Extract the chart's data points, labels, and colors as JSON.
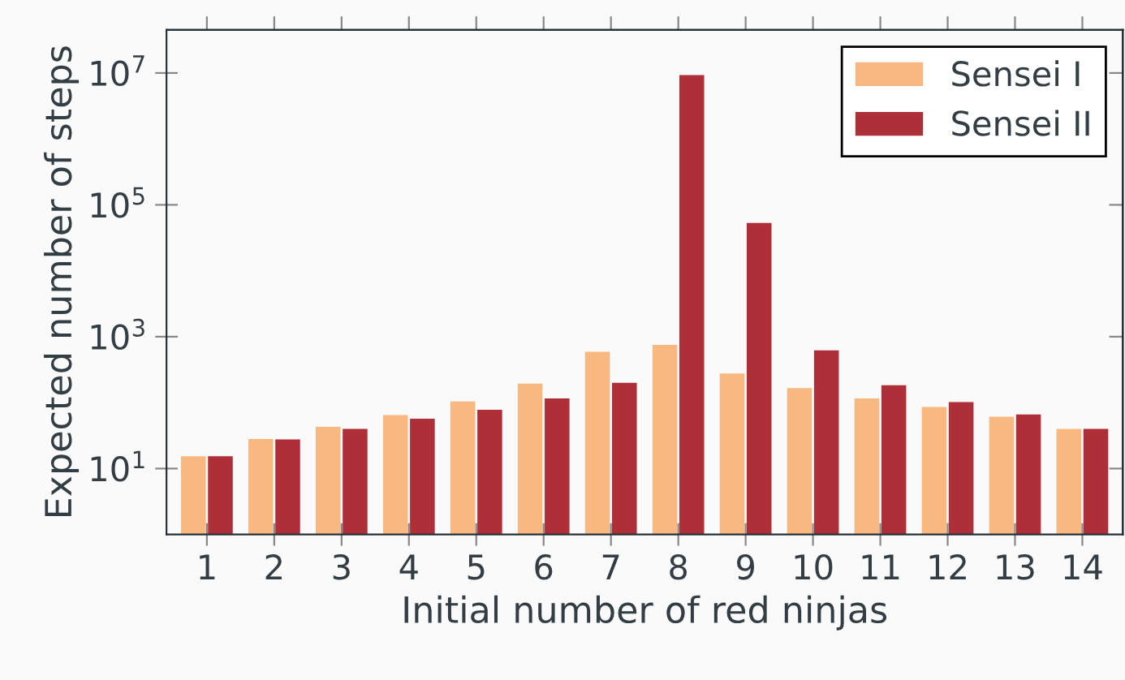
{
  "chart_data": {
    "type": "bar",
    "xlabel": "Initial number of red ninjas",
    "ylabel": "Expected number of steps",
    "categories": [
      "1",
      "2",
      "3",
      "4",
      "5",
      "6",
      "7",
      "8",
      "9",
      "10",
      "11",
      "12",
      "13",
      "14"
    ],
    "series": [
      {
        "name": "Sensei I",
        "color": "#f9b880",
        "values": [
          15.4,
          28,
          43,
          65,
          104,
          194,
          590,
          750,
          276,
          166,
          116,
          86,
          61,
          40
        ]
      },
      {
        "name": "Sensei II",
        "color": "#ae2f38",
        "values": [
          15.4,
          27.6,
          40,
          57,
          78,
          116,
          200,
          9300000,
          53000,
          623,
          183,
          102,
          66,
          40
        ]
      }
    ],
    "log": "y",
    "ylim": [
      1,
      45000000
    ],
    "yticks": [
      {
        "value": 10,
        "label": "10$^{1}$"
      },
      {
        "value": 1000,
        "label": "10$^{3}$"
      },
      {
        "value": 100000,
        "label": "10$^{5}$"
      },
      {
        "value": 10000000,
        "label": "10$^{7}$"
      }
    ],
    "grid": false,
    "legend": "top right"
  }
}
